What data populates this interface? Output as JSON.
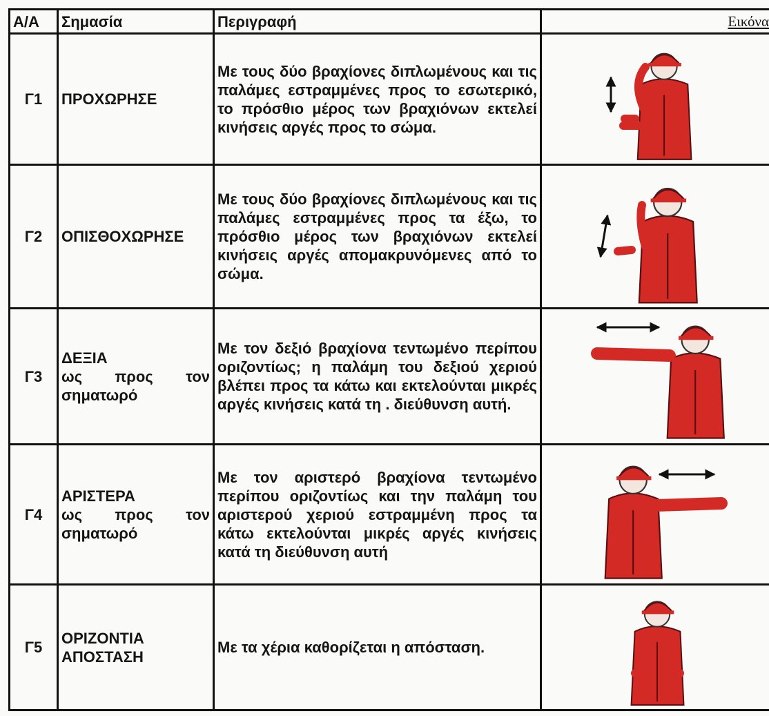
{
  "table": {
    "headers": [
      "Α/Α",
      "Σημασία",
      "Περιγραφή",
      "Εικόνα"
    ],
    "rows": [
      {
        "id": "Γ1",
        "meaning": "ΠΡΟΧΩΡΗΣΕ",
        "description": "Με τους δύο βραχίονες διπλωμένους και τις παλάμες εστραμμένες προς το εσωτερικό, το πρόσθιο μέρος των βραχιόνων εκτελεί κινήσεις αργές προς το σώμα."
      },
      {
        "id": "Γ2",
        "meaning": "ΟΠΙΣΘΟΧΩΡΗΣΕ",
        "description": "Με τους δύο βραχίονες διπλωμένους και τις παλάμες εστραμμένες προς τα έξω, το πρόσθιο μέρος των βραχιόνων εκτελεί κινήσεις αργές απομακρυνόμενες από το σώμα."
      },
      {
        "id": "Γ3",
        "meaning": "ΔΕΞΙΑ",
        "qualifier": "ως προς τον σηματωρό",
        "description": "Με τον δεξιό βραχίονα τεντωμένο περίπου οριζοντίως; η παλάμη του δεξιού χεριού βλέπει προς τα κάτω και εκτελούνται μικρές αργές κινήσεις κατά τη . διεύθυνση αυτή."
      },
      {
        "id": "Γ4",
        "meaning": "ΑΡΙΣΤΕΡΑ",
        "qualifier": "ως προς τον σηματωρό",
        "description": "Με τον αριστερό βραχίονα τεντωμένο περίπου οριζοντίως και την παλάμη του αριστερού χεριού εστραμμένη προς τα κάτω εκτελούνται μικρές αργές κινήσεις κατά τη διεύθυνση αυτή"
      },
      {
        "id": "Γ5",
        "meaning": "ΟΡΙΖΟΝΤΙΑ ΑΠΟΣΤΑΣΗ",
        "description": "Με τα χέρια καθορίζεται η απόσταση."
      }
    ]
  }
}
